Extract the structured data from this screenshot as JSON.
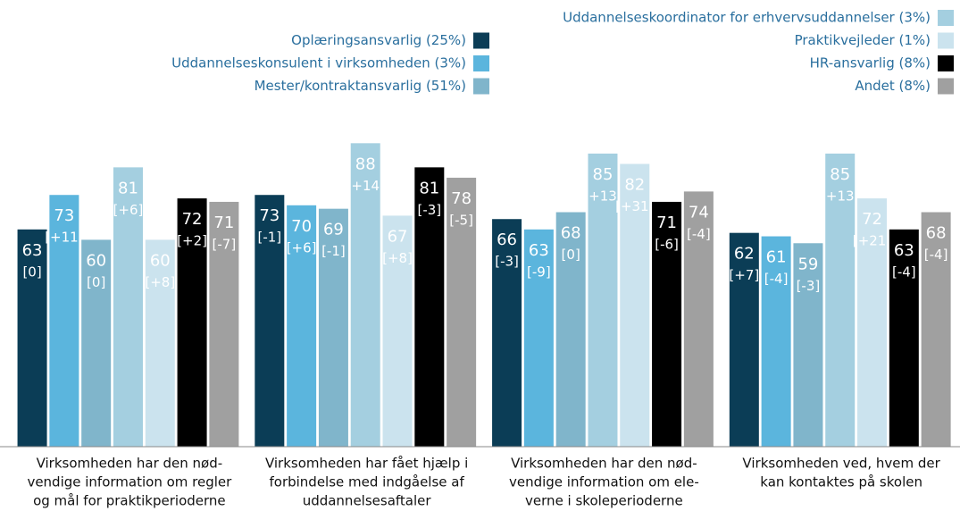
{
  "chart_data": {
    "type": "bar",
    "categories": [
      [
        "Virksomheden har den nød-",
        "vendige information om regler",
        "og mål for praktikperioderne"
      ],
      [
        "Virksomheden har fået hjælp i",
        "forbindelse med indgåelse af",
        "uddannelsesaftaler"
      ],
      [
        "Virksomheden har den nød-",
        "vendige information om ele-",
        "verne i skoleperioderne"
      ],
      [
        "Virksomheden ved, hvem der",
        "kan kontaktes på skolen"
      ]
    ],
    "ylim": [
      0,
      100
    ],
    "series": [
      {
        "name": "Oplæringsansvarlig (25%)",
        "color": "#0b3d56",
        "values": [
          63,
          73,
          66,
          62
        ],
        "changes": [
          "[0]",
          "[-1]",
          "[-3]",
          "[+7]"
        ]
      },
      {
        "name": "Uddannelseskonsulent i virksomheden (3%)",
        "color": "#5bb5dd",
        "values": [
          73,
          70,
          63,
          61
        ],
        "changes": [
          "[+11]",
          "[+6]",
          "[-9]",
          "[-4]"
        ]
      },
      {
        "name": "Mester/kontraktansvarlig (51%)",
        "color": "#80b5cb",
        "values": [
          60,
          69,
          68,
          59
        ],
        "changes": [
          "[0]",
          "[-1]",
          "[0]",
          "[-3]"
        ]
      },
      {
        "name": "Uddannelseskoordinator for erhvervsuddannelser (3%)",
        "color": "#a4cfe0",
        "values": [
          81,
          88,
          85,
          85
        ],
        "changes": [
          "[+6]",
          "[+14]",
          "[+13]",
          "[+13]"
        ]
      },
      {
        "name": "Praktikvejleder (1%)",
        "color": "#cbe3ee",
        "values": [
          60,
          67,
          82,
          72
        ],
        "changes": [
          "[+8]",
          "[+8]",
          "[+31]",
          "[+21]"
        ]
      },
      {
        "name": "HR-ansvarlig (8%)",
        "color": "#000000",
        "values": [
          72,
          81,
          71,
          63
        ],
        "changes": [
          "[+2]",
          "[-3]",
          "[-6]",
          "[-4]"
        ]
      },
      {
        "name": "Andet (8%)",
        "color": "#a0a0a0",
        "values": [
          71,
          78,
          74,
          68
        ],
        "changes": [
          "[-7]",
          "[-5]",
          "[-4]",
          "[-4]"
        ]
      }
    ]
  }
}
